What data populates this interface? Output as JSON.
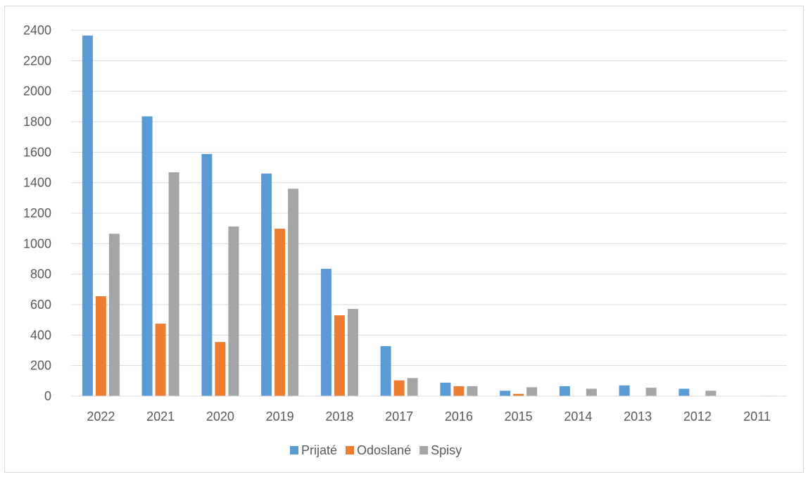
{
  "chart_data": {
    "type": "bar",
    "categories": [
      "2022",
      "2021",
      "2020",
      "2019",
      "2018",
      "2017",
      "2016",
      "2015",
      "2014",
      "2013",
      "2012",
      "2011"
    ],
    "series": [
      {
        "name": "Prijaté",
        "color": "#5b9bd5",
        "values": [
          2365,
          1835,
          1588,
          1460,
          835,
          328,
          88,
          35,
          65,
          70,
          48,
          0
        ]
      },
      {
        "name": "Odoslané",
        "color": "#ed7d31",
        "values": [
          655,
          475,
          355,
          1098,
          530,
          103,
          65,
          15,
          0,
          0,
          0,
          0
        ]
      },
      {
        "name": "Spisy",
        "color": "#a5a5a5",
        "values": [
          1065,
          1468,
          1113,
          1360,
          572,
          118,
          65,
          58,
          48,
          55,
          35,
          3
        ]
      }
    ],
    "yticks": [
      "0",
      "200",
      "400",
      "600",
      "800",
      "1000",
      "1200",
      "1400",
      "1600",
      "1800",
      "2000",
      "2200",
      "2400"
    ],
    "ylim": [
      0,
      2400
    ],
    "grid": true,
    "legend_position": "bottom",
    "title": "",
    "xlabel": "",
    "ylabel": ""
  }
}
